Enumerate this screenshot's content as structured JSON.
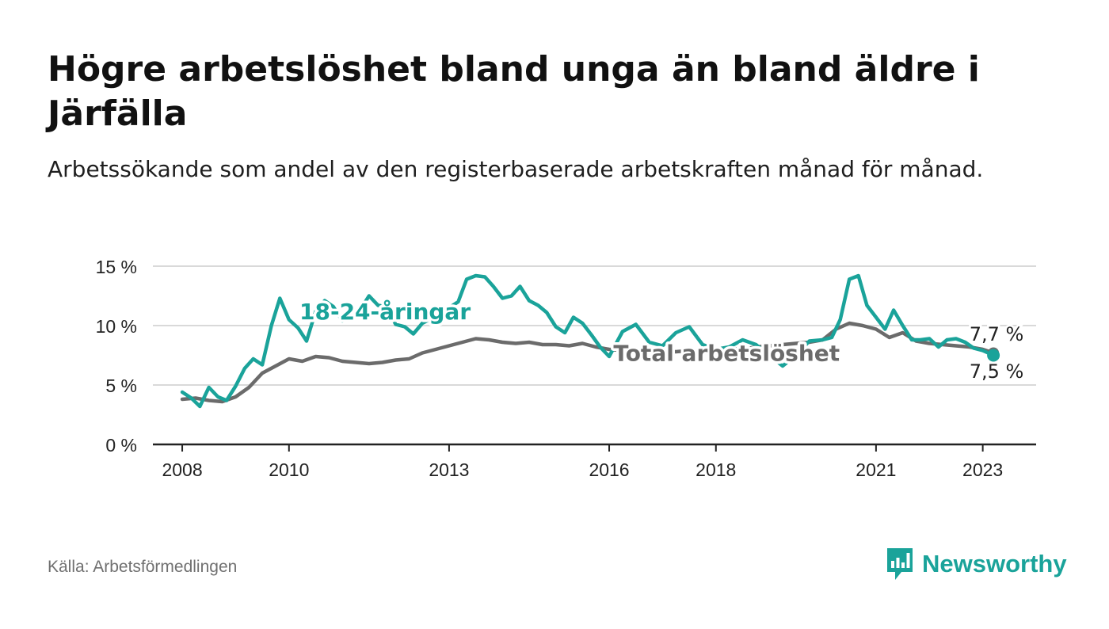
{
  "title": "Högre arbetslöshet bland unga än bland äldre i Järfälla",
  "subtitle": "Arbetssökande som andel av den registerbaserade arbetskraften månad för månad.",
  "source": "Källa: Arbetsförmedlingen",
  "brand": {
    "name": "Newsworthy",
    "icon": "newsworthy-logo-icon"
  },
  "colors": {
    "youth": "#1aa39a",
    "total": "#6b6b6b",
    "grid": "#d9d9d9",
    "axis": "#222222",
    "text": "#222222"
  },
  "chart_data": {
    "type": "line",
    "title": "Högre arbetslöshet bland unga än bland äldre i Järfälla",
    "xlabel": "",
    "ylabel": "",
    "ylim": [
      0,
      15
    ],
    "xlim": [
      2007.45,
      2024.0
    ],
    "y_ticks": [
      0,
      5,
      10,
      15
    ],
    "y_tick_labels": [
      "0 %",
      "5 %",
      "10 %",
      "15 %"
    ],
    "x_ticks": [
      2008,
      2010,
      2013,
      2016,
      2018,
      2021,
      2023
    ],
    "x_tick_labels": [
      "2008",
      "2010",
      "2013",
      "2016",
      "2018",
      "2021",
      "2023"
    ],
    "grid": true,
    "series": [
      {
        "name": "Total arbetslöshet",
        "label": "Total arbetslöshet",
        "color": "#6b6b6b",
        "end_label": "7,7 %",
        "x": [
          2008.0,
          2008.25,
          2008.5,
          2008.75,
          2009.0,
          2009.25,
          2009.5,
          2009.75,
          2010.0,
          2010.25,
          2010.5,
          2010.75,
          2011.0,
          2011.25,
          2011.5,
          2011.75,
          2012.0,
          2012.25,
          2012.5,
          2012.75,
          2013.0,
          2013.25,
          2013.5,
          2013.75,
          2014.0,
          2014.25,
          2014.5,
          2014.75,
          2015.0,
          2015.25,
          2015.5,
          2015.75,
          2016.0,
          2016.25,
          2016.5,
          2016.75,
          2017.0,
          2017.25,
          2017.5,
          2017.75,
          2018.0,
          2018.25,
          2018.5,
          2018.75,
          2019.0,
          2019.25,
          2019.5,
          2019.75,
          2020.0,
          2020.25,
          2020.5,
          2020.75,
          2021.0,
          2021.25,
          2021.5,
          2021.75,
          2022.0,
          2022.25,
          2022.5,
          2022.75,
          2023.0,
          2023.2
        ],
        "values": [
          3.8,
          3.9,
          3.7,
          3.6,
          4.0,
          4.8,
          6.0,
          6.6,
          7.2,
          7.0,
          7.4,
          7.3,
          7.0,
          6.9,
          6.8,
          6.9,
          7.1,
          7.2,
          7.7,
          8.0,
          8.3,
          8.6,
          8.9,
          8.8,
          8.6,
          8.5,
          8.6,
          8.4,
          8.4,
          8.3,
          8.5,
          8.2,
          8.0,
          7.9,
          7.9,
          8.0,
          7.9,
          7.8,
          7.9,
          7.9,
          8.0,
          8.1,
          8.0,
          8.2,
          8.3,
          8.4,
          8.5,
          8.6,
          8.8,
          9.7,
          10.2,
          10.0,
          9.7,
          9.0,
          9.4,
          8.7,
          8.5,
          8.4,
          8.3,
          8.2,
          8.0,
          7.7
        ]
      },
      {
        "name": "18-24-åringar",
        "label": "18-24-åringar",
        "color": "#1aa39a",
        "end_label": "7,5 %",
        "x": [
          2008.0,
          2008.17,
          2008.33,
          2008.5,
          2008.67,
          2008.83,
          2009.0,
          2009.17,
          2009.33,
          2009.5,
          2009.67,
          2009.83,
          2010.0,
          2010.17,
          2010.33,
          2010.5,
          2010.67,
          2010.83,
          2011.0,
          2011.17,
          2011.33,
          2011.5,
          2011.67,
          2011.83,
          2012.0,
          2012.17,
          2012.33,
          2012.5,
          2012.67,
          2012.83,
          2013.0,
          2013.17,
          2013.33,
          2013.5,
          2013.67,
          2013.83,
          2014.0,
          2014.17,
          2014.33,
          2014.5,
          2014.67,
          2014.83,
          2015.0,
          2015.17,
          2015.33,
          2015.5,
          2015.67,
          2015.83,
          2016.0,
          2016.25,
          2016.5,
          2016.75,
          2017.0,
          2017.25,
          2017.5,
          2017.75,
          2018.0,
          2018.25,
          2018.5,
          2018.75,
          2019.0,
          2019.25,
          2019.5,
          2019.75,
          2020.0,
          2020.17,
          2020.33,
          2020.5,
          2020.67,
          2020.83,
          2021.0,
          2021.17,
          2021.33,
          2021.5,
          2021.67,
          2021.83,
          2022.0,
          2022.17,
          2022.33,
          2022.5,
          2022.67,
          2022.83,
          2023.0,
          2023.2
        ],
        "values": [
          4.4,
          3.9,
          3.2,
          4.8,
          4.0,
          3.7,
          4.9,
          6.4,
          7.2,
          6.7,
          10.0,
          12.3,
          10.5,
          9.8,
          8.7,
          11.2,
          12.1,
          11.6,
          10.4,
          11.3,
          11.3,
          12.5,
          11.7,
          11.6,
          10.1,
          9.9,
          9.3,
          10.2,
          10.6,
          11.0,
          11.5,
          12.0,
          13.9,
          14.2,
          14.1,
          13.3,
          12.3,
          12.5,
          13.3,
          12.1,
          11.7,
          11.1,
          9.9,
          9.4,
          10.7,
          10.2,
          9.2,
          8.2,
          7.4,
          9.5,
          10.1,
          8.6,
          8.3,
          9.4,
          9.9,
          8.4,
          8.0,
          8.2,
          8.8,
          8.4,
          7.5,
          6.6,
          7.5,
          8.7,
          8.8,
          9.0,
          10.5,
          13.9,
          14.2,
          11.7,
          10.7,
          9.7,
          11.3,
          10.0,
          8.8,
          8.8,
          8.9,
          8.2,
          8.8,
          8.9,
          8.6,
          8.1,
          7.9,
          7.5
        ]
      }
    ],
    "annotations": [
      {
        "text": "18-24-åringar",
        "series": "18-24-åringar",
        "x": 2011.8,
        "y": 11.2
      },
      {
        "text": "Total arbetslöshet",
        "series": "Total arbetslöshet",
        "x": 2018.2,
        "y": 7.7
      }
    ]
  }
}
